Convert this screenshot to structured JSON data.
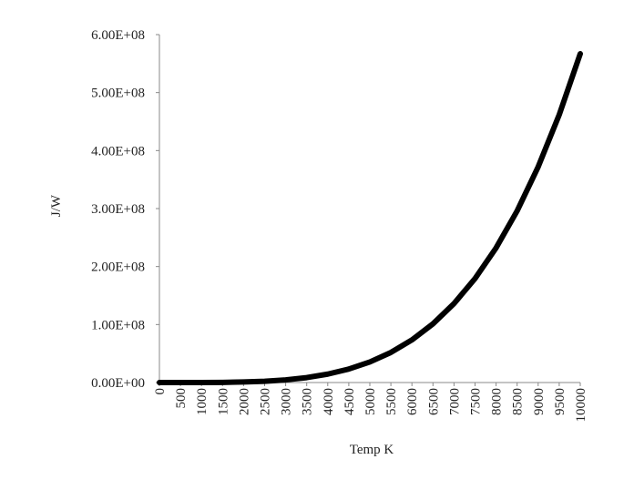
{
  "chart_data": {
    "type": "line",
    "x_label": "Temp K",
    "y_label": "J/W",
    "x": [
      0,
      500,
      1000,
      1500,
      2000,
      2500,
      3000,
      3500,
      4000,
      4500,
      5000,
      5500,
      6000,
      6500,
      7000,
      7500,
      8000,
      8500,
      9000,
      9500,
      10000
    ],
    "series": [
      {
        "color": "#000000",
        "values": [
          0,
          3543.75,
          56700,
          287043.75,
          907200,
          2214843.75,
          4592700,
          8508543.75,
          14515200,
          23250543.75,
          35437500,
          51884043.75,
          73483200,
          101212043.75,
          136136700,
          179402343.75,
          232243200,
          295977543.75,
          372008700,
          461825043.75,
          567000000
        ]
      }
    ],
    "xlim": [
      0,
      10000
    ],
    "xticks": [
      0,
      500,
      1000,
      1500,
      2000,
      2500,
      3000,
      3500,
      4000,
      4500,
      5000,
      5500,
      6000,
      6500,
      7000,
      7500,
      8000,
      8500,
      9000,
      9500,
      10000
    ],
    "ylim": [
      0,
      600000000
    ],
    "yticks": [
      {
        "value": 0,
        "label": "0.00E+00"
      },
      {
        "value": 100000000,
        "label": "1.00E+08"
      },
      {
        "value": 200000000,
        "label": "2.00E+08"
      },
      {
        "value": 300000000,
        "label": "3.00E+08"
      },
      {
        "value": 400000000,
        "label": "4.00E+08"
      },
      {
        "value": 500000000,
        "label": "5.00E+08"
      },
      {
        "value": 600000000,
        "label": "6.00E+08"
      }
    ],
    "grid": false
  }
}
